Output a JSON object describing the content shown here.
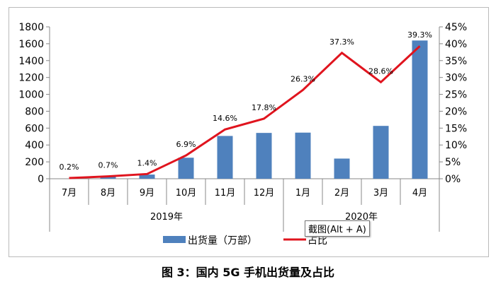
{
  "chart_data": {
    "type": "bar+line",
    "title": "图 3：国内 5G 手机出货量及占比",
    "categories": [
      "7月",
      "8月",
      "9月",
      "10月",
      "11月",
      "12月",
      "1月",
      "2月",
      "3月",
      "4月"
    ],
    "groups": [
      {
        "label": "2019年",
        "span": 6
      },
      {
        "label": "2020年",
        "span": 4
      }
    ],
    "series": [
      {
        "name": "出货量（万部）",
        "type": "bar",
        "axis": "left",
        "color": "#4f81bd",
        "values": [
          0,
          21.9,
          49.6,
          249,
          507,
          543,
          546.5,
          238.9,
          626.2,
          1638.2
        ]
      },
      {
        "name": "占比",
        "type": "line",
        "axis": "right",
        "color": "#e0141e",
        "values": [
          0.2,
          0.7,
          1.4,
          6.9,
          14.6,
          17.8,
          26.3,
          37.3,
          28.6,
          39.3
        ],
        "labels": [
          "0.2%",
          "0.7%",
          "1.4%",
          "6.9%",
          "14.6%",
          "17.8%",
          "26.3%",
          "37.3%",
          "28.6%",
          "39.3%"
        ]
      }
    ],
    "ylim_left": [
      0,
      1800
    ],
    "yticks_left": [
      0,
      200,
      400,
      600,
      800,
      1000,
      1200,
      1400,
      1600,
      1800
    ],
    "ylim_right": [
      0,
      45
    ],
    "yticks_right": [
      "0%",
      "5%",
      "10%",
      "15%",
      "20%",
      "25%",
      "30%",
      "35%",
      "40%",
      "45%"
    ],
    "legend": "bottom",
    "grid": false
  },
  "tooltip": "截图(Alt + A)"
}
